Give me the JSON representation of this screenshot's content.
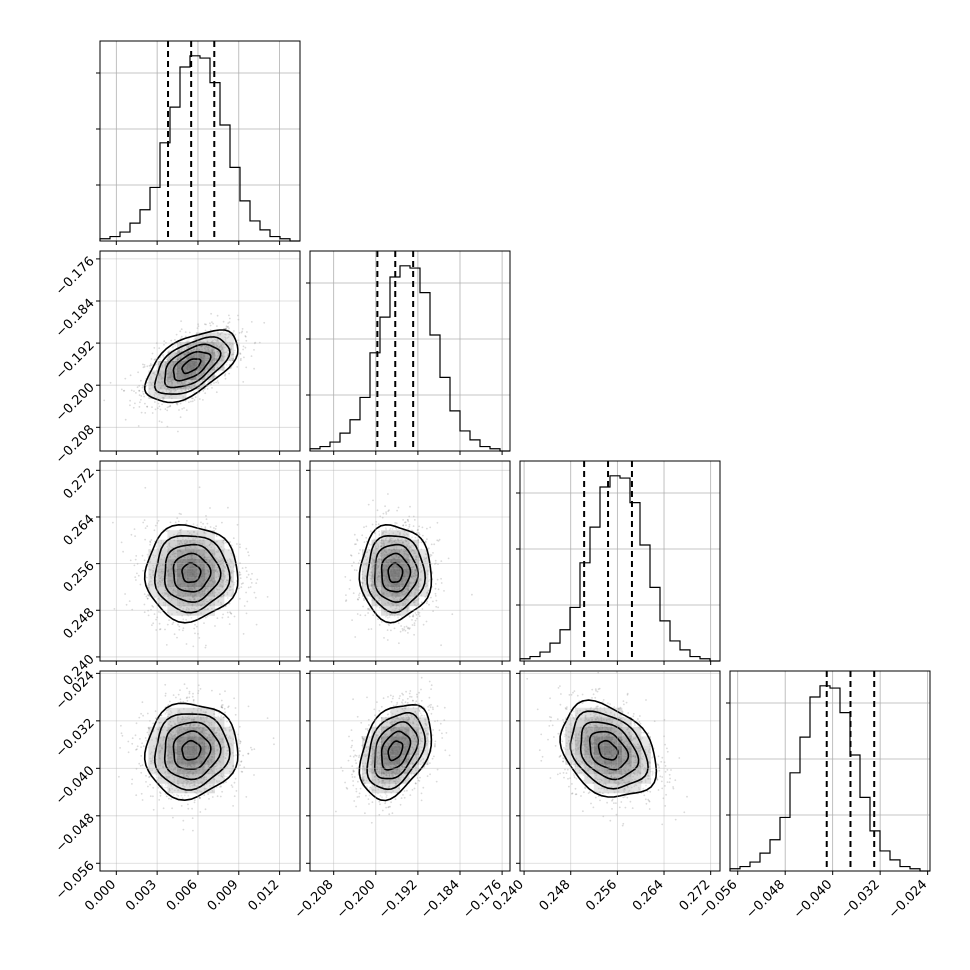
{
  "chart_data": {
    "type": "corner",
    "grid": true,
    "parameters": [
      {
        "key": "p0",
        "range": [
          -0.0012,
          0.0135
        ],
        "ticks": [
          "0.000",
          "0.003",
          "0.006",
          "0.009",
          "0.012"
        ],
        "quantiles": [
          0.0038,
          0.0055,
          0.0072
        ],
        "hist": [
          1,
          2,
          4,
          8,
          14,
          24,
          44,
          60,
          78,
          83,
          82,
          71,
          52,
          33,
          18,
          9,
          5,
          2,
          1,
          0
        ]
      },
      {
        "key": "p1",
        "range": [
          -0.2125,
          -0.1745
        ],
        "ticks": [
          "-0.208",
          "-0.200",
          "-0.192",
          "-0.184",
          "-0.176"
        ],
        "quantiles": [
          -0.1997,
          -0.1963,
          -0.1929
        ],
        "hist": [
          1,
          2,
          4,
          8,
          14,
          24,
          44,
          60,
          78,
          83,
          82,
          71,
          52,
          33,
          18,
          9,
          5,
          2,
          1,
          0
        ]
      },
      {
        "key": "p2",
        "range": [
          0.2393,
          0.2736
        ],
        "ticks": [
          "0.240",
          "0.248",
          "0.256",
          "0.264",
          "0.272"
        ],
        "quantiles": [
          0.2503,
          0.2544,
          0.2585
        ],
        "hist": [
          1,
          2,
          4,
          8,
          14,
          24,
          44,
          60,
          78,
          83,
          82,
          71,
          52,
          33,
          18,
          9,
          5,
          2,
          1,
          0
        ]
      },
      {
        "key": "p3",
        "range": [
          -0.0573,
          -0.0236
        ],
        "ticks": [
          "-0.056",
          "-0.048",
          "-0.040",
          "-0.032",
          "-0.024"
        ],
        "quantiles": [
          -0.041,
          -0.037,
          -0.033
        ],
        "hist": [
          1,
          2,
          4,
          8,
          14,
          24,
          44,
          60,
          78,
          83,
          82,
          71,
          52,
          33,
          18,
          9,
          5,
          2,
          1,
          0
        ]
      }
    ],
    "correlations": [
      {
        "x": "p0",
        "y": "p1",
        "r": 0.55
      },
      {
        "x": "p0",
        "y": "p2",
        "r": 0.0
      },
      {
        "x": "p1",
        "y": "p2",
        "r": 0.0
      },
      {
        "x": "p0",
        "y": "p3",
        "r": 0.05
      },
      {
        "x": "p1",
        "y": "p3",
        "r": 0.35
      },
      {
        "x": "p2",
        "y": "p3",
        "r": -0.3
      }
    ],
    "density_levels": [
      0.4,
      0.8,
      1.2,
      1.6,
      2.0
    ],
    "colors": {
      "frame": "#000000",
      "grid": "#b0b0b0",
      "points": "#555555",
      "density": "#000000"
    }
  }
}
